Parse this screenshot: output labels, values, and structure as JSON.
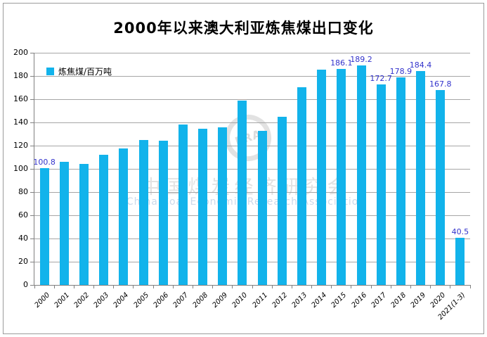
{
  "title": "2000年以来澳大利亚炼焦煤出口变化",
  "legend": {
    "label": "炼焦煤/百万吨"
  },
  "watermark": {
    "logo_text": "ERA",
    "line1_cn": "中国煤炭经济研究会",
    "line2_en": "China Coal Economic Research Association"
  },
  "colors": {
    "bar": "#12b3eb",
    "data_label": "#3333cc",
    "gridline": "#a6a6a6",
    "axis": "#808080",
    "title_text": "#000000"
  },
  "chart_data": {
    "type": "bar",
    "title": "2000年以来澳大利亚炼焦煤出口变化",
    "legend_entries": [
      "炼焦煤/百万吨"
    ],
    "legend_position": "top-left-inside",
    "grid": true,
    "xlabel": "",
    "ylabel": "",
    "ylim": [
      0,
      200
    ],
    "yticks": [
      0,
      20,
      40,
      60,
      80,
      100,
      120,
      140,
      160,
      180,
      200
    ],
    "categories": [
      "2000",
      "2001",
      "2002",
      "2003",
      "2004",
      "2005",
      "2006",
      "2007",
      "2008",
      "2009",
      "2010",
      "2011",
      "2012",
      "2013",
      "2014",
      "2015",
      "2016",
      "2017",
      "2018",
      "2019",
      "2020",
      "2021(1-3)"
    ],
    "values": [
      100.8,
      106.3,
      104.4,
      112.0,
      117.4,
      125.1,
      124.5,
      138.2,
      134.6,
      135.6,
      159.0,
      132.8,
      144.9,
      170.5,
      185.5,
      186.1,
      189.2,
      172.7,
      178.9,
      184.4,
      167.8,
      40.5
    ],
    "data_labels": {
      "0": "100.8",
      "15": "186.1",
      "16": "189.2",
      "17": "172.7",
      "18": "178.9",
      "19": "184.4",
      "20": "167.8",
      "21": "40.5"
    }
  }
}
